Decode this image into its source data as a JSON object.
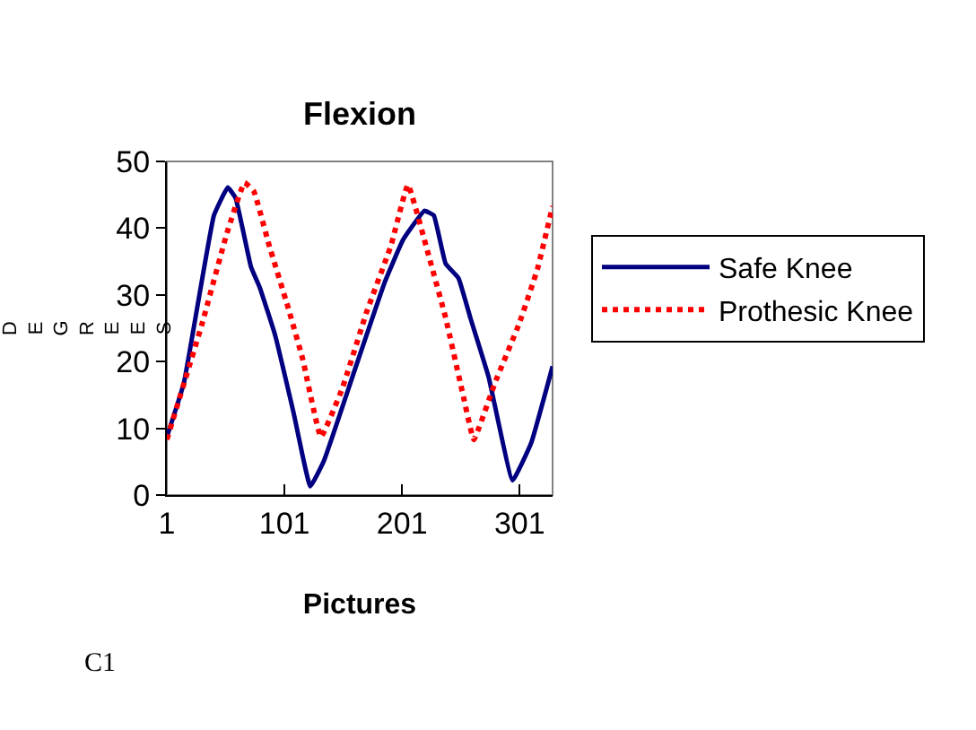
{
  "chart_data": {
    "type": "line",
    "title": "Flexion",
    "xlabel": "Pictures",
    "ylabel": "DEGREES",
    "annotations": [
      "C1"
    ],
    "xlim": [
      1,
      329
    ],
    "xticks": [
      1,
      101,
      201,
      301
    ],
    "ylim": [
      0,
      50
    ],
    "yticks": [
      0,
      10,
      20,
      30,
      40,
      50
    ],
    "grid": false,
    "legend": "right",
    "marker": "none",
    "series": [
      {
        "name": "Safe Knee",
        "color": "#000080",
        "line_style": "solid",
        "x": [
          1,
          15.5,
          41,
          52.8,
          59.5,
          72.5,
          80,
          93,
          108.8,
          123,
          134.5,
          160.5,
          186.5,
          202,
          220,
          228,
          238,
          249,
          259,
          274.6,
          295,
          310.8,
          329
        ],
        "values": [
          8.7,
          16.8,
          41.9,
          46.1,
          44.5,
          34.2,
          31.1,
          24,
          12.3,
          1.3,
          5.1,
          18.6,
          32,
          38.3,
          42.6,
          41.9,
          34.7,
          32.5,
          26.6,
          17.7,
          2.2,
          7.8,
          19.3
        ]
      },
      {
        "name": "Prothesic Knee",
        "color": "#ff0000",
        "line_style": "dotted",
        "x": [
          1,
          31,
          52,
          67,
          75,
          88,
          103.6,
          116.5,
          132,
          150,
          171,
          191.6,
          206,
          222.7,
          238,
          254,
          262,
          280,
          300.6,
          316,
          329
        ],
        "values": [
          8.3,
          25.7,
          39.2,
          46.8,
          45.5,
          37.4,
          28.4,
          20.4,
          8.7,
          15.9,
          27.5,
          37.4,
          46.5,
          36.5,
          26.6,
          14.1,
          8.3,
          16.8,
          25.7,
          33.8,
          43.3
        ]
      }
    ]
  }
}
